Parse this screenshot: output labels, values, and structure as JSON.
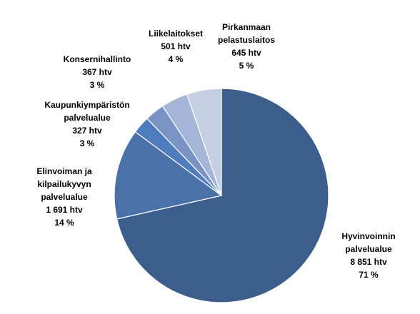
{
  "chart_data": {
    "type": "pie",
    "categories": [
      "Hyvinvoinnin\npalvelualue",
      "Elinvoiman ja\nkilpailukyvyn\npalvelualue",
      "Kaupunkiympäristön\npalvelualue",
      "Konsernihallinto",
      "Liikelaitokset",
      "Pirkanmaan\npelastuslaitos"
    ],
    "values": [
      8851,
      1691,
      327,
      367,
      501,
      645
    ],
    "value_labels": [
      "8 851 htv",
      "1 691 htv",
      "327 htv",
      "367 htv",
      "501 htv",
      "645 htv"
    ],
    "share_labels": [
      "71 %",
      "14 %",
      "3 %",
      "3 %",
      "4 %",
      "5 %"
    ],
    "colors": [
      "#3b5e8c",
      "#4a72a8",
      "#4f7cbf",
      "#7994c4",
      "#a5b5d7",
      "#c5cfe3"
    ]
  }
}
